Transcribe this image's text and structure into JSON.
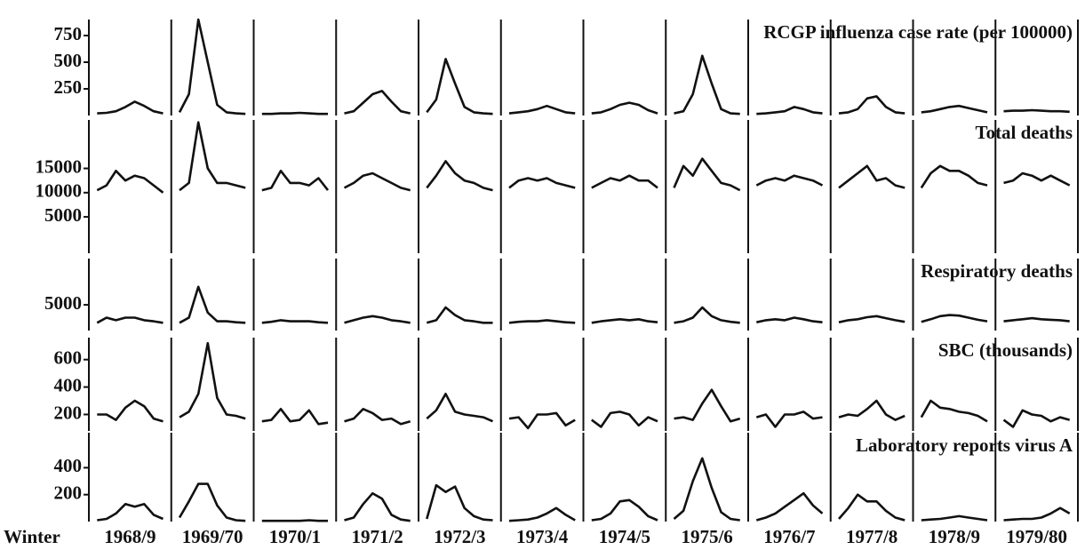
{
  "chart_data": [
    {
      "type": "line",
      "title": "RCGP influenza case rate (per 100000)",
      "color": "#111111",
      "ylim": [
        0,
        900
      ],
      "yticks": [
        250,
        500,
        750
      ],
      "values": [
        [
          20,
          25,
          40,
          80,
          130,
          90,
          40,
          20
        ],
        [
          30,
          200,
          900,
          500,
          100,
          30,
          20,
          15
        ],
        [
          15,
          15,
          20,
          20,
          25,
          20,
          15,
          15
        ],
        [
          20,
          40,
          120,
          200,
          230,
          130,
          40,
          20
        ],
        [
          30,
          150,
          530,
          300,
          80,
          30,
          20,
          15
        ],
        [
          20,
          30,
          40,
          60,
          90,
          60,
          30,
          20
        ],
        [
          20,
          30,
          60,
          100,
          120,
          100,
          50,
          20
        ],
        [
          20,
          40,
          200,
          560,
          300,
          60,
          20,
          15
        ],
        [
          15,
          20,
          30,
          40,
          80,
          60,
          30,
          20
        ],
        [
          20,
          30,
          60,
          160,
          180,
          80,
          30,
          20
        ],
        [
          30,
          40,
          60,
          80,
          90,
          70,
          50,
          30
        ],
        [
          40,
          45,
          45,
          50,
          45,
          40,
          40,
          35
        ]
      ]
    },
    {
      "type": "line",
      "title": "Total deaths",
      "color": "#111111",
      "ylim": [
        -2500,
        25000
      ],
      "yticks": [
        5000,
        10000,
        15000
      ],
      "values": [
        [
          10500,
          11500,
          14500,
          12500,
          13500,
          13000,
          11500,
          10000
        ],
        [
          10500,
          12000,
          24500,
          15000,
          12000,
          12000,
          11500,
          11000
        ],
        [
          10500,
          11000,
          14500,
          12000,
          12000,
          11500,
          13000,
          10500
        ],
        [
          11000,
          12000,
          13500,
          14000,
          13000,
          12000,
          11000,
          10500
        ],
        [
          11000,
          13500,
          16500,
          14000,
          12500,
          12000,
          11000,
          10500
        ],
        [
          11000,
          12500,
          13000,
          12500,
          13000,
          12000,
          11500,
          11000
        ],
        [
          11000,
          12000,
          13000,
          12500,
          13500,
          12500,
          12500,
          11000
        ],
        [
          11000,
          15500,
          13500,
          17000,
          14500,
          12000,
          11500,
          10500
        ],
        [
          11500,
          12500,
          13000,
          12500,
          13500,
          13000,
          12500,
          11500
        ],
        [
          11000,
          12500,
          14000,
          15500,
          12500,
          13000,
          11500,
          11000
        ],
        [
          11000,
          14000,
          15500,
          14500,
          14500,
          13500,
          12000,
          11500
        ],
        [
          12000,
          12500,
          14000,
          13500,
          12500,
          13500,
          12500,
          11500
        ]
      ]
    },
    {
      "type": "line",
      "title": "Respiratory deaths",
      "color": "#111111",
      "ylim": [
        0,
        14000
      ],
      "yticks": [
        5000
      ],
      "values": [
        [
          1500,
          2500,
          2000,
          2500,
          2500,
          2000,
          1800,
          1500
        ],
        [
          1500,
          2500,
          8500,
          3500,
          1800,
          1800,
          1600,
          1500
        ],
        [
          1500,
          1700,
          2000,
          1800,
          1800,
          1800,
          1600,
          1500
        ],
        [
          1500,
          2000,
          2500,
          2800,
          2500,
          2000,
          1800,
          1500
        ],
        [
          1500,
          2000,
          4500,
          3000,
          2000,
          1800,
          1500,
          1500
        ],
        [
          1500,
          1700,
          1800,
          1800,
          2000,
          1800,
          1600,
          1500
        ],
        [
          1500,
          1800,
          2000,
          2200,
          2000,
          2200,
          1800,
          1600
        ],
        [
          1500,
          1800,
          2500,
          4500,
          2800,
          2000,
          1700,
          1500
        ],
        [
          1600,
          2000,
          2200,
          2000,
          2500,
          2200,
          1800,
          1600
        ],
        [
          1600,
          2000,
          2200,
          2600,
          2800,
          2400,
          2000,
          1700
        ],
        [
          1700,
          2200,
          2800,
          3000,
          2900,
          2500,
          2100,
          1800
        ],
        [
          1800,
          2000,
          2200,
          2400,
          2200,
          2100,
          2000,
          1800
        ]
      ]
    },
    {
      "type": "line",
      "title": "SBC (thousands)",
      "color": "#111111",
      "ylim": [
        80,
        760
      ],
      "yticks": [
        200,
        400,
        600
      ],
      "values": [
        [
          200,
          200,
          160,
          250,
          300,
          260,
          170,
          150
        ],
        [
          180,
          220,
          350,
          720,
          320,
          200,
          190,
          170
        ],
        [
          150,
          160,
          240,
          150,
          160,
          230,
          130,
          140
        ],
        [
          150,
          170,
          240,
          210,
          160,
          170,
          130,
          150
        ],
        [
          170,
          230,
          350,
          220,
          200,
          190,
          180,
          150
        ],
        [
          170,
          180,
          100,
          200,
          200,
          210,
          120,
          160
        ],
        [
          160,
          110,
          210,
          220,
          200,
          120,
          180,
          150
        ],
        [
          170,
          180,
          160,
          280,
          380,
          260,
          150,
          170
        ],
        [
          180,
          200,
          110,
          200,
          200,
          220,
          170,
          180
        ],
        [
          180,
          200,
          190,
          240,
          300,
          200,
          160,
          190
        ],
        [
          180,
          300,
          250,
          240,
          220,
          210,
          190,
          150
        ],
        [
          160,
          110,
          230,
          200,
          190,
          150,
          180,
          160
        ]
      ]
    },
    {
      "type": "line",
      "title": "Laboratory reports virus A",
      "color": "#111111",
      "ylim": [
        0,
        660
      ],
      "yticks": [
        200,
        400
      ],
      "x_label": "Winter",
      "categories": [
        "1968/9",
        "1969/70",
        "1970/1",
        "1971/2",
        "1972/3",
        "1973/4",
        "1974/5",
        "1975/6",
        "1976/7",
        "1977/8",
        "1978/9",
        "1979/80"
      ],
      "values": [
        [
          10,
          20,
          60,
          130,
          110,
          130,
          50,
          20
        ],
        [
          30,
          150,
          280,
          280,
          120,
          30,
          10,
          5
        ],
        [
          5,
          5,
          5,
          5,
          5,
          10,
          5,
          5
        ],
        [
          10,
          30,
          130,
          210,
          170,
          50,
          15,
          5
        ],
        [
          20,
          270,
          220,
          260,
          100,
          40,
          15,
          10
        ],
        [
          5,
          10,
          15,
          30,
          60,
          100,
          50,
          10
        ],
        [
          10,
          20,
          60,
          150,
          160,
          110,
          40,
          10
        ],
        [
          20,
          80,
          300,
          470,
          250,
          70,
          20,
          10
        ],
        [
          10,
          30,
          60,
          110,
          160,
          210,
          120,
          60
        ],
        [
          20,
          100,
          200,
          150,
          150,
          80,
          30,
          10
        ],
        [
          10,
          15,
          20,
          30,
          40,
          30,
          20,
          10
        ],
        [
          10,
          15,
          20,
          20,
          30,
          60,
          100,
          60
        ]
      ]
    }
  ]
}
